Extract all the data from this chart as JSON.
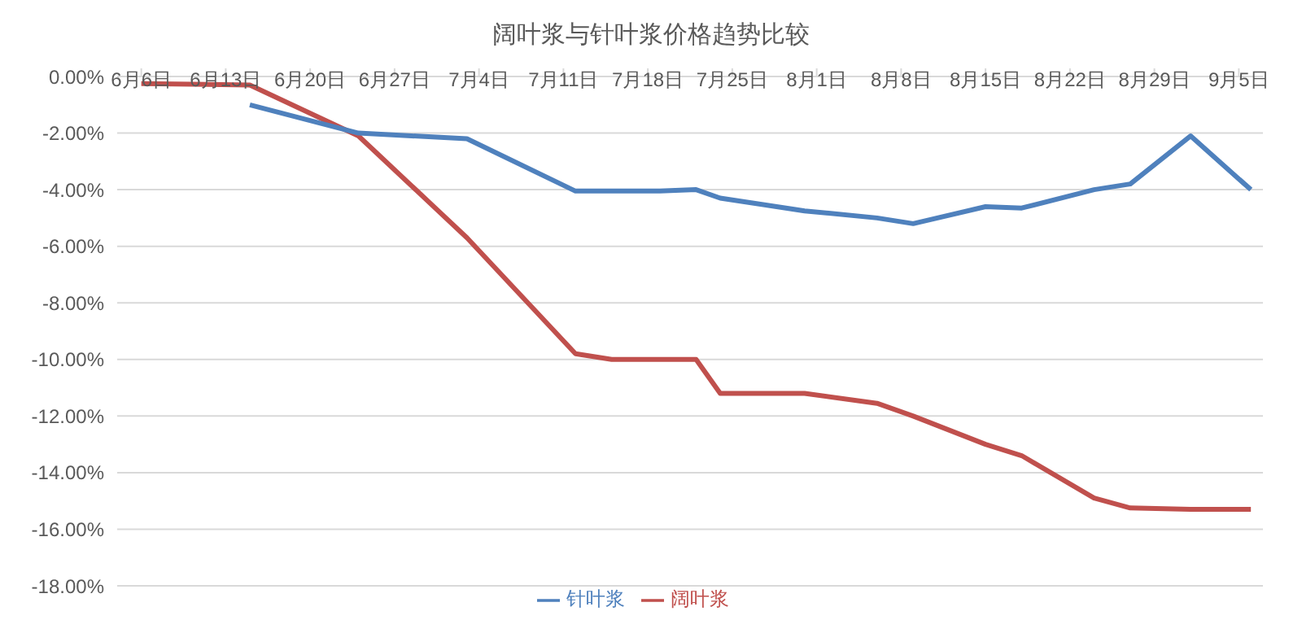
{
  "chart_data": {
    "type": "line",
    "title": "阔叶浆与针叶浆价格趋势比较",
    "xlim": [
      "--06-04",
      "--09-07"
    ],
    "xticks": [
      {
        "value": "--06-06",
        "label": "6月6日"
      },
      {
        "value": "--06-13",
        "label": "6月13日"
      },
      {
        "value": "--06-20",
        "label": "6月20日"
      },
      {
        "value": "--06-27",
        "label": "6月27日"
      },
      {
        "value": "--07-04",
        "label": "7月4日"
      },
      {
        "value": "--07-11",
        "label": "7月11日"
      },
      {
        "value": "--07-18",
        "label": "7月18日"
      },
      {
        "value": "--07-25",
        "label": "7月25日"
      },
      {
        "value": "--08-01",
        "label": "8月1日"
      },
      {
        "value": "--08-08",
        "label": "8月8日"
      },
      {
        "value": "--08-15",
        "label": "8月15日"
      },
      {
        "value": "--08-22",
        "label": "8月22日"
      },
      {
        "value": "--08-29",
        "label": "8月29日"
      },
      {
        "value": "--09-05",
        "label": "9月5日"
      }
    ],
    "ylim": [
      -18,
      0
    ],
    "yticks": [
      {
        "value": 0,
        "label": "0.00%"
      },
      {
        "value": -2,
        "label": "-2.00%"
      },
      {
        "value": -4,
        "label": "-4.00%"
      },
      {
        "value": -6,
        "label": "-6.00%"
      },
      {
        "value": -8,
        "label": "-8.00%"
      },
      {
        "value": -10,
        "label": "-10.00%"
      },
      {
        "value": -12,
        "label": "-12.00%"
      },
      {
        "value": -14,
        "label": "-14.00%"
      },
      {
        "value": -16,
        "label": "-16.00%"
      },
      {
        "value": -18,
        "label": "-18.00%"
      }
    ],
    "grid": "y",
    "legend": "bottom",
    "marker": "none",
    "line_style": "solid",
    "series": [
      {
        "name": "阔叶浆",
        "color": "#c0504d",
        "x": [
          "--06-06",
          "--06-15",
          "--06-24",
          "--07-03",
          "--07-12",
          "--07-15",
          "--07-19",
          "--07-22",
          "--07-24",
          "--07-31",
          "--08-06",
          "--08-09",
          "--08-15",
          "--08-18",
          "--08-24",
          "--08-27",
          "--09-01",
          "--09-06"
        ],
        "values": [
          -0.25,
          -0.3,
          -2.1,
          -5.7,
          -9.8,
          -10.0,
          -10.0,
          -10.0,
          -11.2,
          -11.2,
          -11.55,
          -12.0,
          -13.0,
          -13.4,
          -14.9,
          -15.25,
          -15.3,
          -15.3
        ]
      },
      {
        "name": "针叶浆",
        "color": "#4f81bd",
        "x": [
          "--06-15",
          "--06-24",
          "--07-03",
          "--07-12",
          "--07-19",
          "--07-22",
          "--07-24",
          "--07-31",
          "--08-06",
          "--08-09",
          "--08-15",
          "--08-18",
          "--08-24",
          "--08-27",
          "--09-01",
          "--09-06"
        ],
        "values": [
          -1.0,
          -2.0,
          -2.2,
          -4.05,
          -4.05,
          -4.0,
          -4.3,
          -4.75,
          -5.0,
          -5.2,
          -4.6,
          -4.65,
          -4.0,
          -3.8,
          -2.1,
          -4.0
        ]
      }
    ]
  }
}
